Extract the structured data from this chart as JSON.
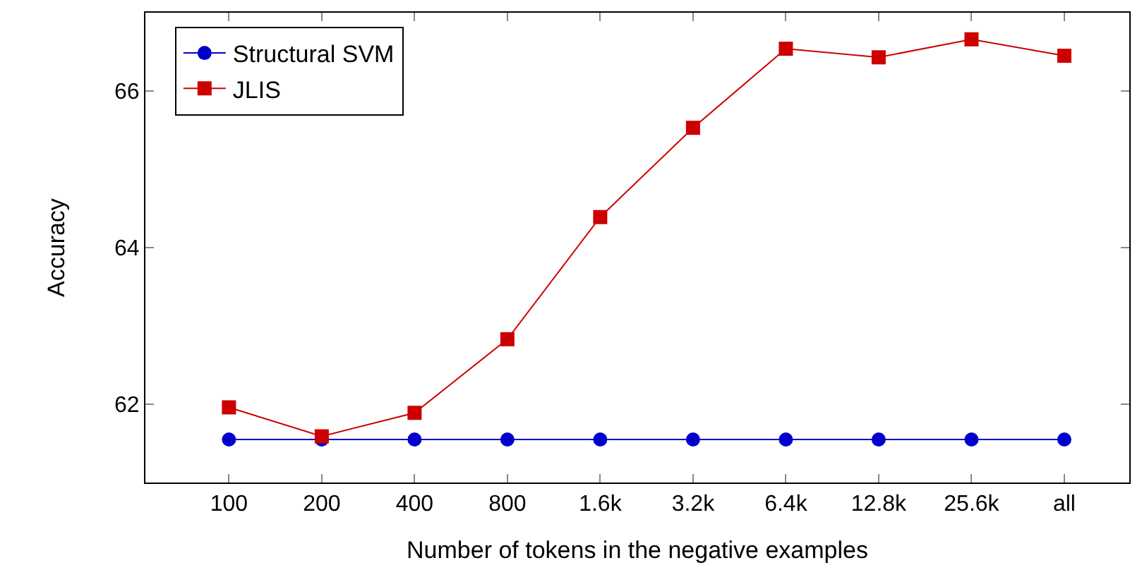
{
  "chart_data": {
    "type": "line",
    "xlabel": "Number of tokens in the negative examples",
    "ylabel": "Accuracy",
    "categories": [
      "100",
      "200",
      "400",
      "800",
      "1.6k",
      "3.2k",
      "6.4k",
      "12.8k",
      "25.6k",
      "all"
    ],
    "series": [
      {
        "name": "Structural SVM",
        "color": "#0000cc",
        "marker": "circle",
        "values": [
          61.55,
          61.55,
          61.55,
          61.55,
          61.55,
          61.55,
          61.55,
          61.55,
          61.55,
          61.55
        ]
      },
      {
        "name": "JLIS",
        "color": "#cc0000",
        "marker": "square",
        "values": [
          61.96,
          61.59,
          61.89,
          62.83,
          64.39,
          65.53,
          66.54,
          66.43,
          66.66,
          66.45
        ]
      }
    ],
    "ylim": [
      61,
      67
    ],
    "yticks": [
      62,
      64,
      66
    ],
    "legend": "top left",
    "line_style": "solid"
  }
}
